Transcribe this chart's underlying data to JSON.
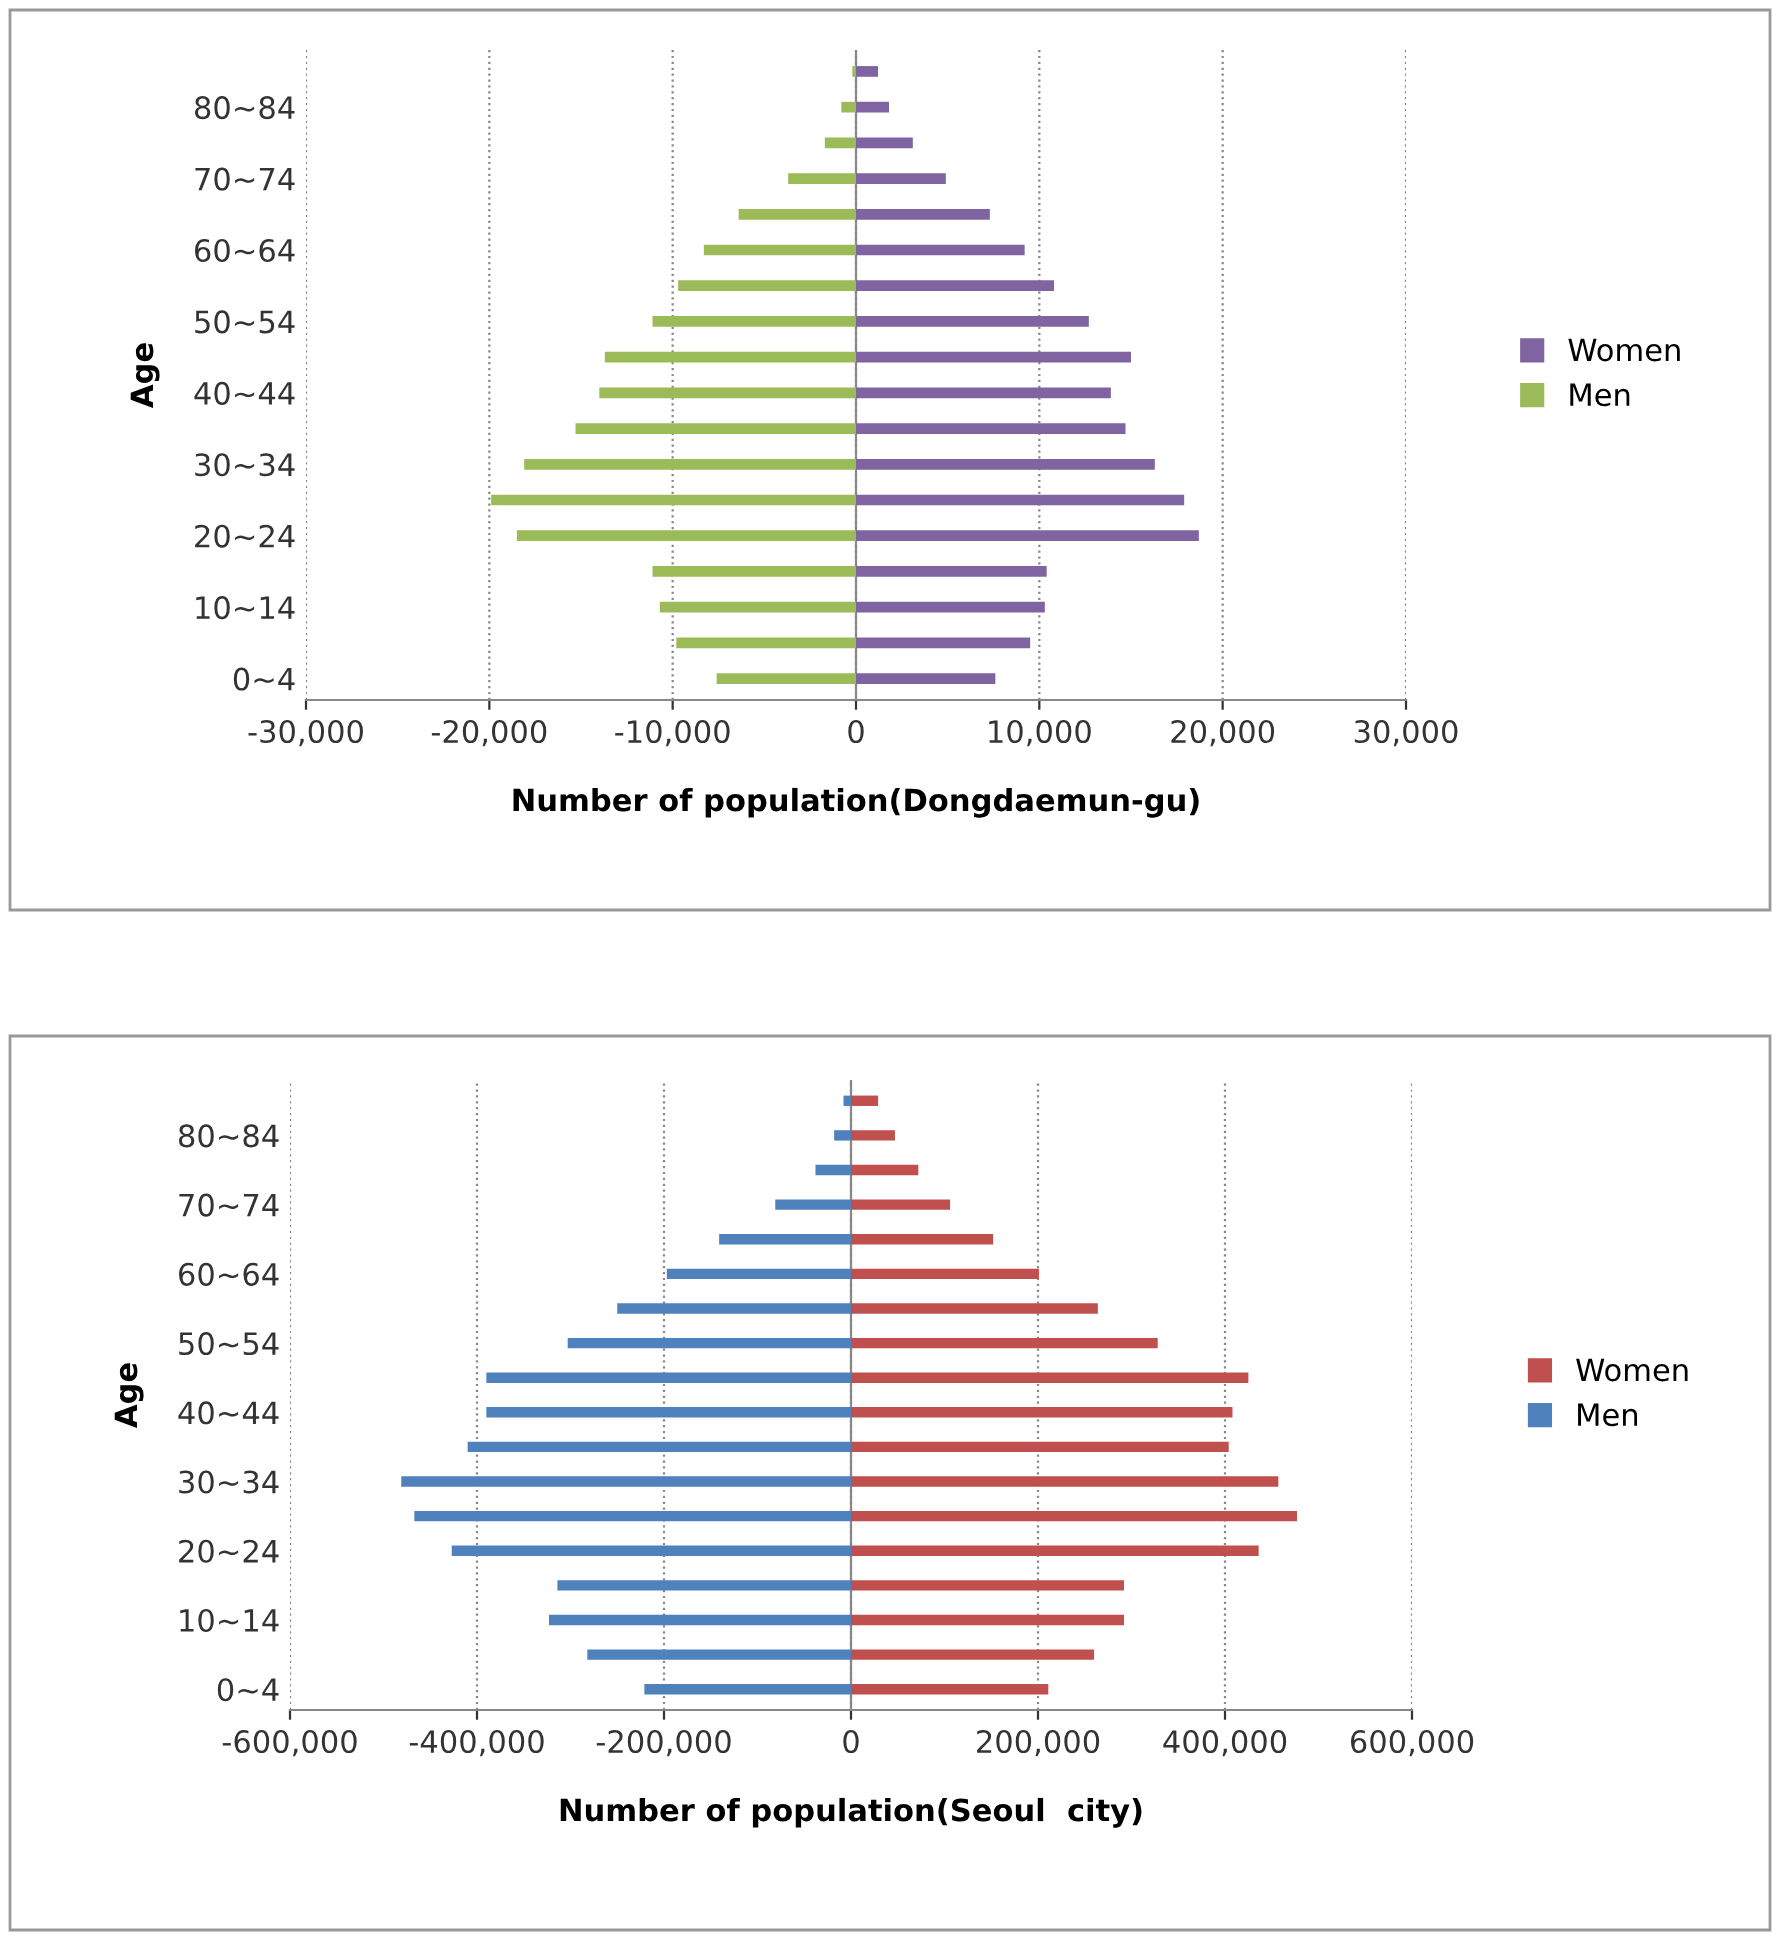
{
  "chart_data": [
    {
      "type": "bar",
      "orientation": "horizontal",
      "stacked": true,
      "xlabel": "Number of population(Dongdaemun-gu)",
      "ylabel": "Age",
      "categories": [
        null,
        "80~84",
        null,
        "70~74",
        null,
        "60~64",
        null,
        "50~54",
        null,
        "40~44",
        null,
        "30~34",
        null,
        "20~24",
        null,
        "10~14",
        null,
        "0~4"
      ],
      "series": [
        {
          "name": "Women",
          "color": "#8064a2",
          "values": [
            1200,
            1800,
            3100,
            4900,
            7300,
            9200,
            10800,
            12700,
            15000,
            13900,
            14700,
            16300,
            17900,
            18700,
            10400,
            10300,
            9500,
            7600
          ]
        },
        {
          "name": "Men",
          "color": "#9bbb59",
          "values": [
            -200,
            -800,
            -1700,
            -3700,
            -6400,
            -8300,
            -9700,
            -11100,
            -13700,
            -14000,
            -15300,
            -18100,
            -19900,
            -18500,
            -11100,
            -10700,
            -9800,
            -7600
          ]
        }
      ],
      "xlim": [
        -30000,
        30000
      ],
      "xticks": [
        {
          "value": -30000,
          "label": "-30,000"
        },
        {
          "value": -20000,
          "label": "-20,000"
        },
        {
          "value": -10000,
          "label": "-10,000"
        },
        0,
        {
          "value": 10000,
          "label": "10,000"
        },
        {
          "value": 20000,
          "label": "20,000"
        },
        {
          "value": 30000,
          "label": "30,000"
        }
      ],
      "grid": "x",
      "legend": "right"
    },
    {
      "type": "bar",
      "orientation": "horizontal",
      "stacked": true,
      "xlabel": "Number of population(Seoul  city)",
      "ylabel": "Age",
      "categories": [
        null,
        "80~84",
        null,
        "70~74",
        null,
        "60~64",
        null,
        "50~54",
        null,
        "40~44",
        null,
        "30~34",
        null,
        "20~24",
        null,
        "10~14",
        null,
        "0~4"
      ],
      "series": [
        {
          "name": "Women",
          "color": "#c0504d",
          "values": [
            29000,
            47000,
            72000,
            106000,
            152000,
            201000,
            264000,
            328000,
            425000,
            408000,
            404000,
            457000,
            477000,
            436000,
            292000,
            292000,
            260000,
            211000
          ]
        },
        {
          "name": "Men",
          "color": "#4f81bd",
          "values": [
            -8000,
            -18000,
            -38000,
            -81000,
            -141000,
            -197000,
            -250000,
            -303000,
            -390000,
            -390000,
            -410000,
            -481000,
            -467000,
            -427000,
            -314000,
            -323000,
            -282000,
            -221000
          ]
        }
      ],
      "xlim": [
        -600000,
        600000
      ],
      "xticks": [
        {
          "value": -600000,
          "label": "-600,000"
        },
        {
          "value": -400000,
          "label": "-400,000"
        },
        {
          "value": -200000,
          "label": "-200,000"
        },
        0,
        {
          "value": 200000,
          "label": "200,000"
        },
        {
          "value": 400000,
          "label": "400,000"
        },
        {
          "value": 600000,
          "label": "600,000"
        }
      ],
      "grid": "x",
      "legend": "right"
    }
  ]
}
